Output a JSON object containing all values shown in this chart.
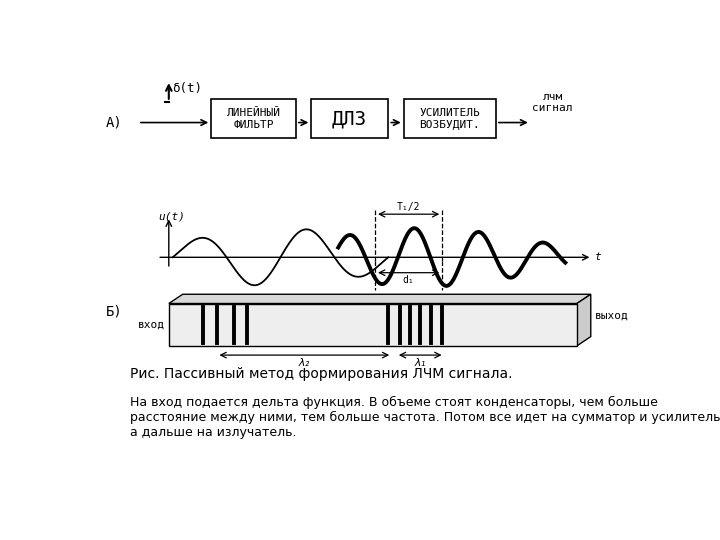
{
  "bg_color": "#ffffff",
  "label_A": "А)",
  "label_B": "Б)",
  "box1_text": "ЛИНЕЙНЫЙ\nФИЛЬТР",
  "box2_text": "ДЛЗ",
  "box3_text": "УСИЛИТЕЛЬ\nВОЗБУДИТ.",
  "delta_label": "δ(t)",
  "lcm_label": "лчм\nсигнал",
  "u_label": "u(t)",
  "t_label": "t",
  "t1_label": "T₁/2",
  "d1_label": "d₁",
  "lambda1_label": "λ₁",
  "lambda2_label": "λ₂",
  "vhod_label": "вход",
  "vyhod_label": "выход",
  "caption": "Рис. Пассивный метод формирования ЛЧМ сигнала.",
  "body_text": "На вход подается дельта функция. В объеме стоят конденсаторы, чем больше\nрасстояние между ними, тем больше частота. Потом все идет на сумматор и усилитель,\nа дальше на излучатель.",
  "font_size_box": 8,
  "font_size_label": 9,
  "font_size_caption": 10,
  "font_size_body": 9
}
